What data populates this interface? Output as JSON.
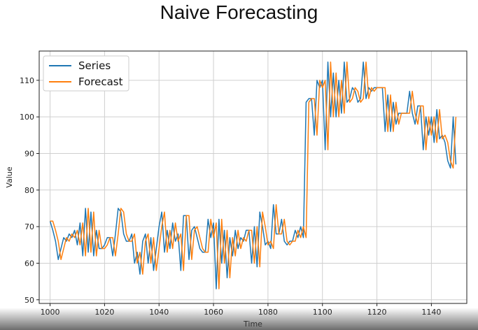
{
  "chart_data": {
    "type": "line",
    "title": "Naive Forecasting",
    "xlabel": "Time",
    "ylabel": "Value",
    "xlim": [
      996,
      1153
    ],
    "ylim": [
      49,
      118
    ],
    "xticks": [
      1000,
      1020,
      1040,
      1060,
      1080,
      1100,
      1120,
      1140
    ],
    "yticks": [
      50,
      60,
      70,
      80,
      90,
      100,
      110
    ],
    "grid": true,
    "legend_position": "top-left",
    "x_start": 1000,
    "series": [
      {
        "name": "Series",
        "color": "#1f77b4",
        "values": [
          71.5,
          69,
          66,
          61,
          64,
          67,
          66,
          68,
          67,
          69,
          65,
          71,
          62,
          75,
          63,
          74,
          62,
          69,
          64,
          64,
          65,
          67,
          67,
          62,
          68,
          75,
          74,
          68,
          66,
          66,
          68,
          60,
          63,
          57,
          66,
          68,
          60,
          67,
          58,
          64,
          70,
          74,
          63,
          69,
          64,
          71,
          66,
          68,
          58,
          73,
          73,
          61,
          69,
          70,
          67,
          64,
          63,
          63,
          72,
          67,
          71,
          53,
          72,
          60,
          69,
          56,
          67,
          62,
          69,
          64,
          67,
          66,
          69,
          69,
          60,
          70,
          59,
          74,
          70,
          65,
          66,
          64,
          76,
          68,
          68,
          72,
          66,
          65,
          66,
          66,
          69,
          67,
          70,
          67,
          104,
          105,
          105,
          95,
          110,
          108,
          110,
          91,
          115,
          100,
          112,
          100,
          110,
          101,
          115,
          104,
          105,
          108,
          107,
          104,
          105,
          115,
          105,
          108,
          107,
          108,
          108,
          108,
          108,
          96,
          106,
          96,
          104,
          98,
          101,
          101,
          101,
          101,
          107,
          101,
          98,
          103,
          103,
          91,
          100,
          95,
          100,
          93,
          102,
          94,
          95,
          93,
          88,
          86,
          100,
          87
        ]
      },
      {
        "name": "Forecast",
        "color": "#ff7f0e",
        "values": [
          71.5,
          71.5,
          69,
          66,
          61,
          64,
          67,
          66,
          68,
          67,
          69,
          65,
          71,
          62,
          75,
          63,
          74,
          62,
          69,
          64,
          64,
          65,
          67,
          67,
          62,
          68,
          75,
          74,
          68,
          66,
          66,
          68,
          60,
          63,
          57,
          66,
          68,
          60,
          67,
          58,
          64,
          70,
          74,
          63,
          69,
          64,
          71,
          66,
          68,
          58,
          73,
          73,
          61,
          69,
          70,
          67,
          64,
          63,
          63,
          72,
          67,
          71,
          53,
          72,
          60,
          69,
          56,
          67,
          62,
          69,
          64,
          67,
          66,
          69,
          69,
          60,
          70,
          59,
          74,
          70,
          65,
          66,
          64,
          76,
          68,
          68,
          72,
          66,
          65,
          66,
          66,
          69,
          67,
          70,
          67,
          104,
          105,
          105,
          95,
          110,
          108,
          110,
          91,
          115,
          100,
          112,
          100,
          110,
          101,
          115,
          104,
          105,
          108,
          107,
          104,
          105,
          115,
          105,
          108,
          107,
          108,
          108,
          108,
          108,
          96,
          106,
          96,
          104,
          98,
          101,
          101,
          101,
          101,
          107,
          101,
          98,
          103,
          103,
          91,
          100,
          95,
          100,
          93,
          102,
          94,
          95,
          93,
          88,
          86,
          100
        ]
      }
    ]
  }
}
